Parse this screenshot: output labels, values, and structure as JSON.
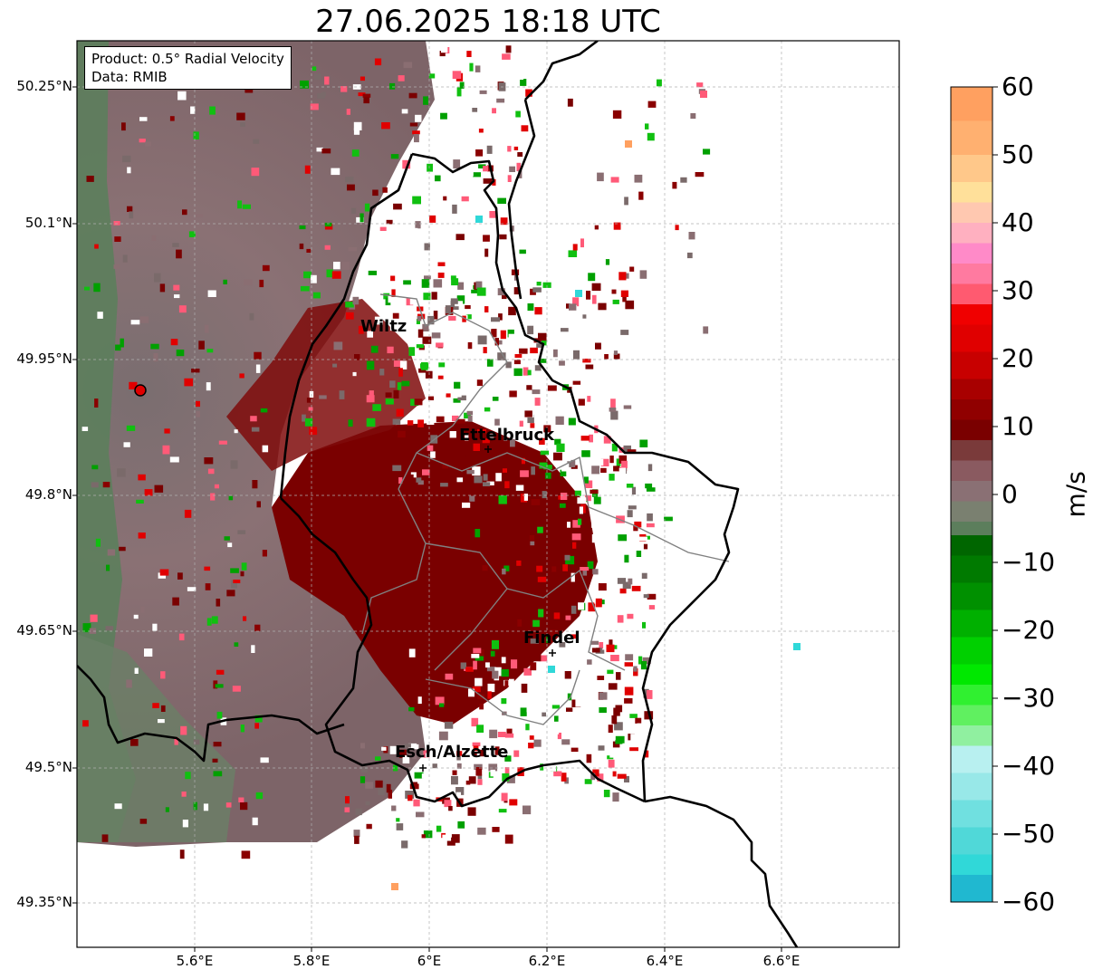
{
  "title": "27.06.2025 18:18 UTC",
  "infobox": {
    "product": "Product: 0.5° Radial Velocity",
    "data_source": "Data: RMIB"
  },
  "cities": [
    {
      "name": "Wiltz"
    },
    {
      "name": "Ettelbruck"
    },
    {
      "name": "Findel"
    },
    {
      "name": "Esch/Alzette"
    }
  ],
  "axes": {
    "lat_labels": [
      "50.25°N",
      "50.1°N",
      "49.95°N",
      "49.8°N",
      "49.65°N",
      "49.5°N",
      "49.35°N"
    ],
    "lon_labels": [
      "5.6°E",
      "5.8°E",
      "6°E",
      "6.2°E",
      "6.4°E",
      "6.6°E"
    ]
  },
  "colorbar": {
    "unit": "m/s",
    "ticks": [
      "60",
      "50",
      "40",
      "30",
      "20",
      "10",
      "0",
      "−10",
      "−20",
      "−30",
      "−40",
      "−50",
      "−60"
    ],
    "range": [
      -60,
      60
    ]
  },
  "colors": {
    "receding_dark": "#7a0000",
    "receding_red": "#e00000",
    "receding_pink": "#ff5a78",
    "near_zero_grey": "#8a6e72",
    "near_zero_green": "#5c7e5c",
    "approaching_green": "#10c010",
    "approaching_cyan": "#30d8d8",
    "radar_site": "#e00000"
  },
  "radar_site": {
    "name": "radar-site"
  }
}
